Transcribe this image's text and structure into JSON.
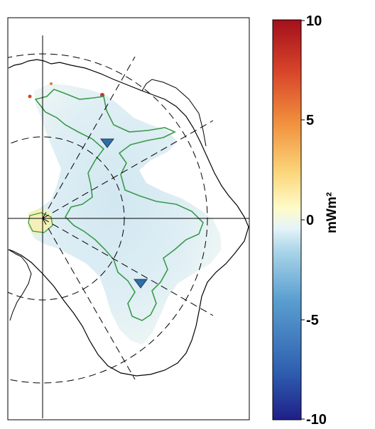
{
  "map": {
    "region": "Antarctica",
    "projection": "polar-stereographic",
    "markers": [
      {
        "shape": "triangle-down",
        "color": "#2f6fa8"
      },
      {
        "shape": "triangle-down",
        "color": "#2f6fa8"
      }
    ],
    "outline_color": "#3a9a4a",
    "coastline_color": "#000000",
    "graticule": {
      "style": "dashed"
    }
  },
  "colorbar": {
    "unit": "mWm²",
    "ticks": [
      "10",
      "5",
      "0",
      "-5",
      "-10"
    ],
    "tick_values": [
      10,
      5,
      0,
      -5,
      -10
    ],
    "range": [
      -10,
      10
    ],
    "colormap_stops": [
      "#1f1f88",
      "#2f5fb0",
      "#5a9fd0",
      "#a8d4e8",
      "#e6f4f8",
      "#fffbc8",
      "#fbd57a",
      "#f1913e",
      "#d8452a",
      "#a3101c"
    ]
  }
}
